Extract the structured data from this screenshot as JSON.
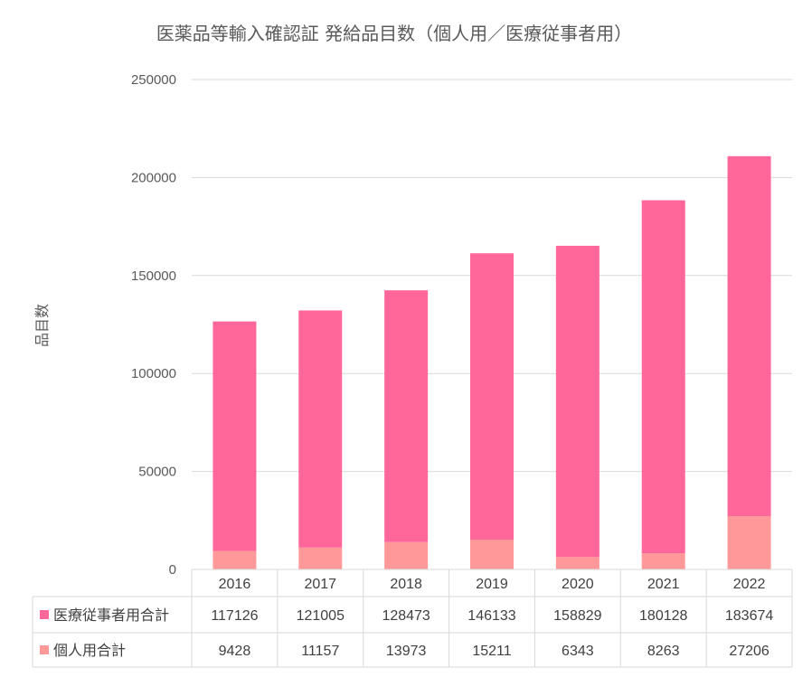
{
  "chart_data": {
    "type": "bar",
    "stacked": true,
    "title": "医薬品等輸入確認証 発給品目数（個人用／医療従事者用）",
    "xlabel": "",
    "ylabel": "品目数",
    "categories": [
      "2016",
      "2017",
      "2018",
      "2019",
      "2020",
      "2021",
      "2022"
    ],
    "yticks": [
      "0",
      "50000",
      "100000",
      "150000",
      "200000",
      "250000"
    ],
    "ylim": [
      0,
      250000
    ],
    "grid": true,
    "legend": "data-table-bottom",
    "series": [
      {
        "name": "個人用合計",
        "values": [
          9428,
          11157,
          13973,
          15211,
          6343,
          8263,
          27206
        ],
        "color": "#ff9999"
      },
      {
        "name": "医療従事者用合計",
        "values": [
          117126,
          121005,
          128473,
          146133,
          158829,
          180128,
          183674
        ],
        "color": "#ff6699"
      }
    ]
  }
}
